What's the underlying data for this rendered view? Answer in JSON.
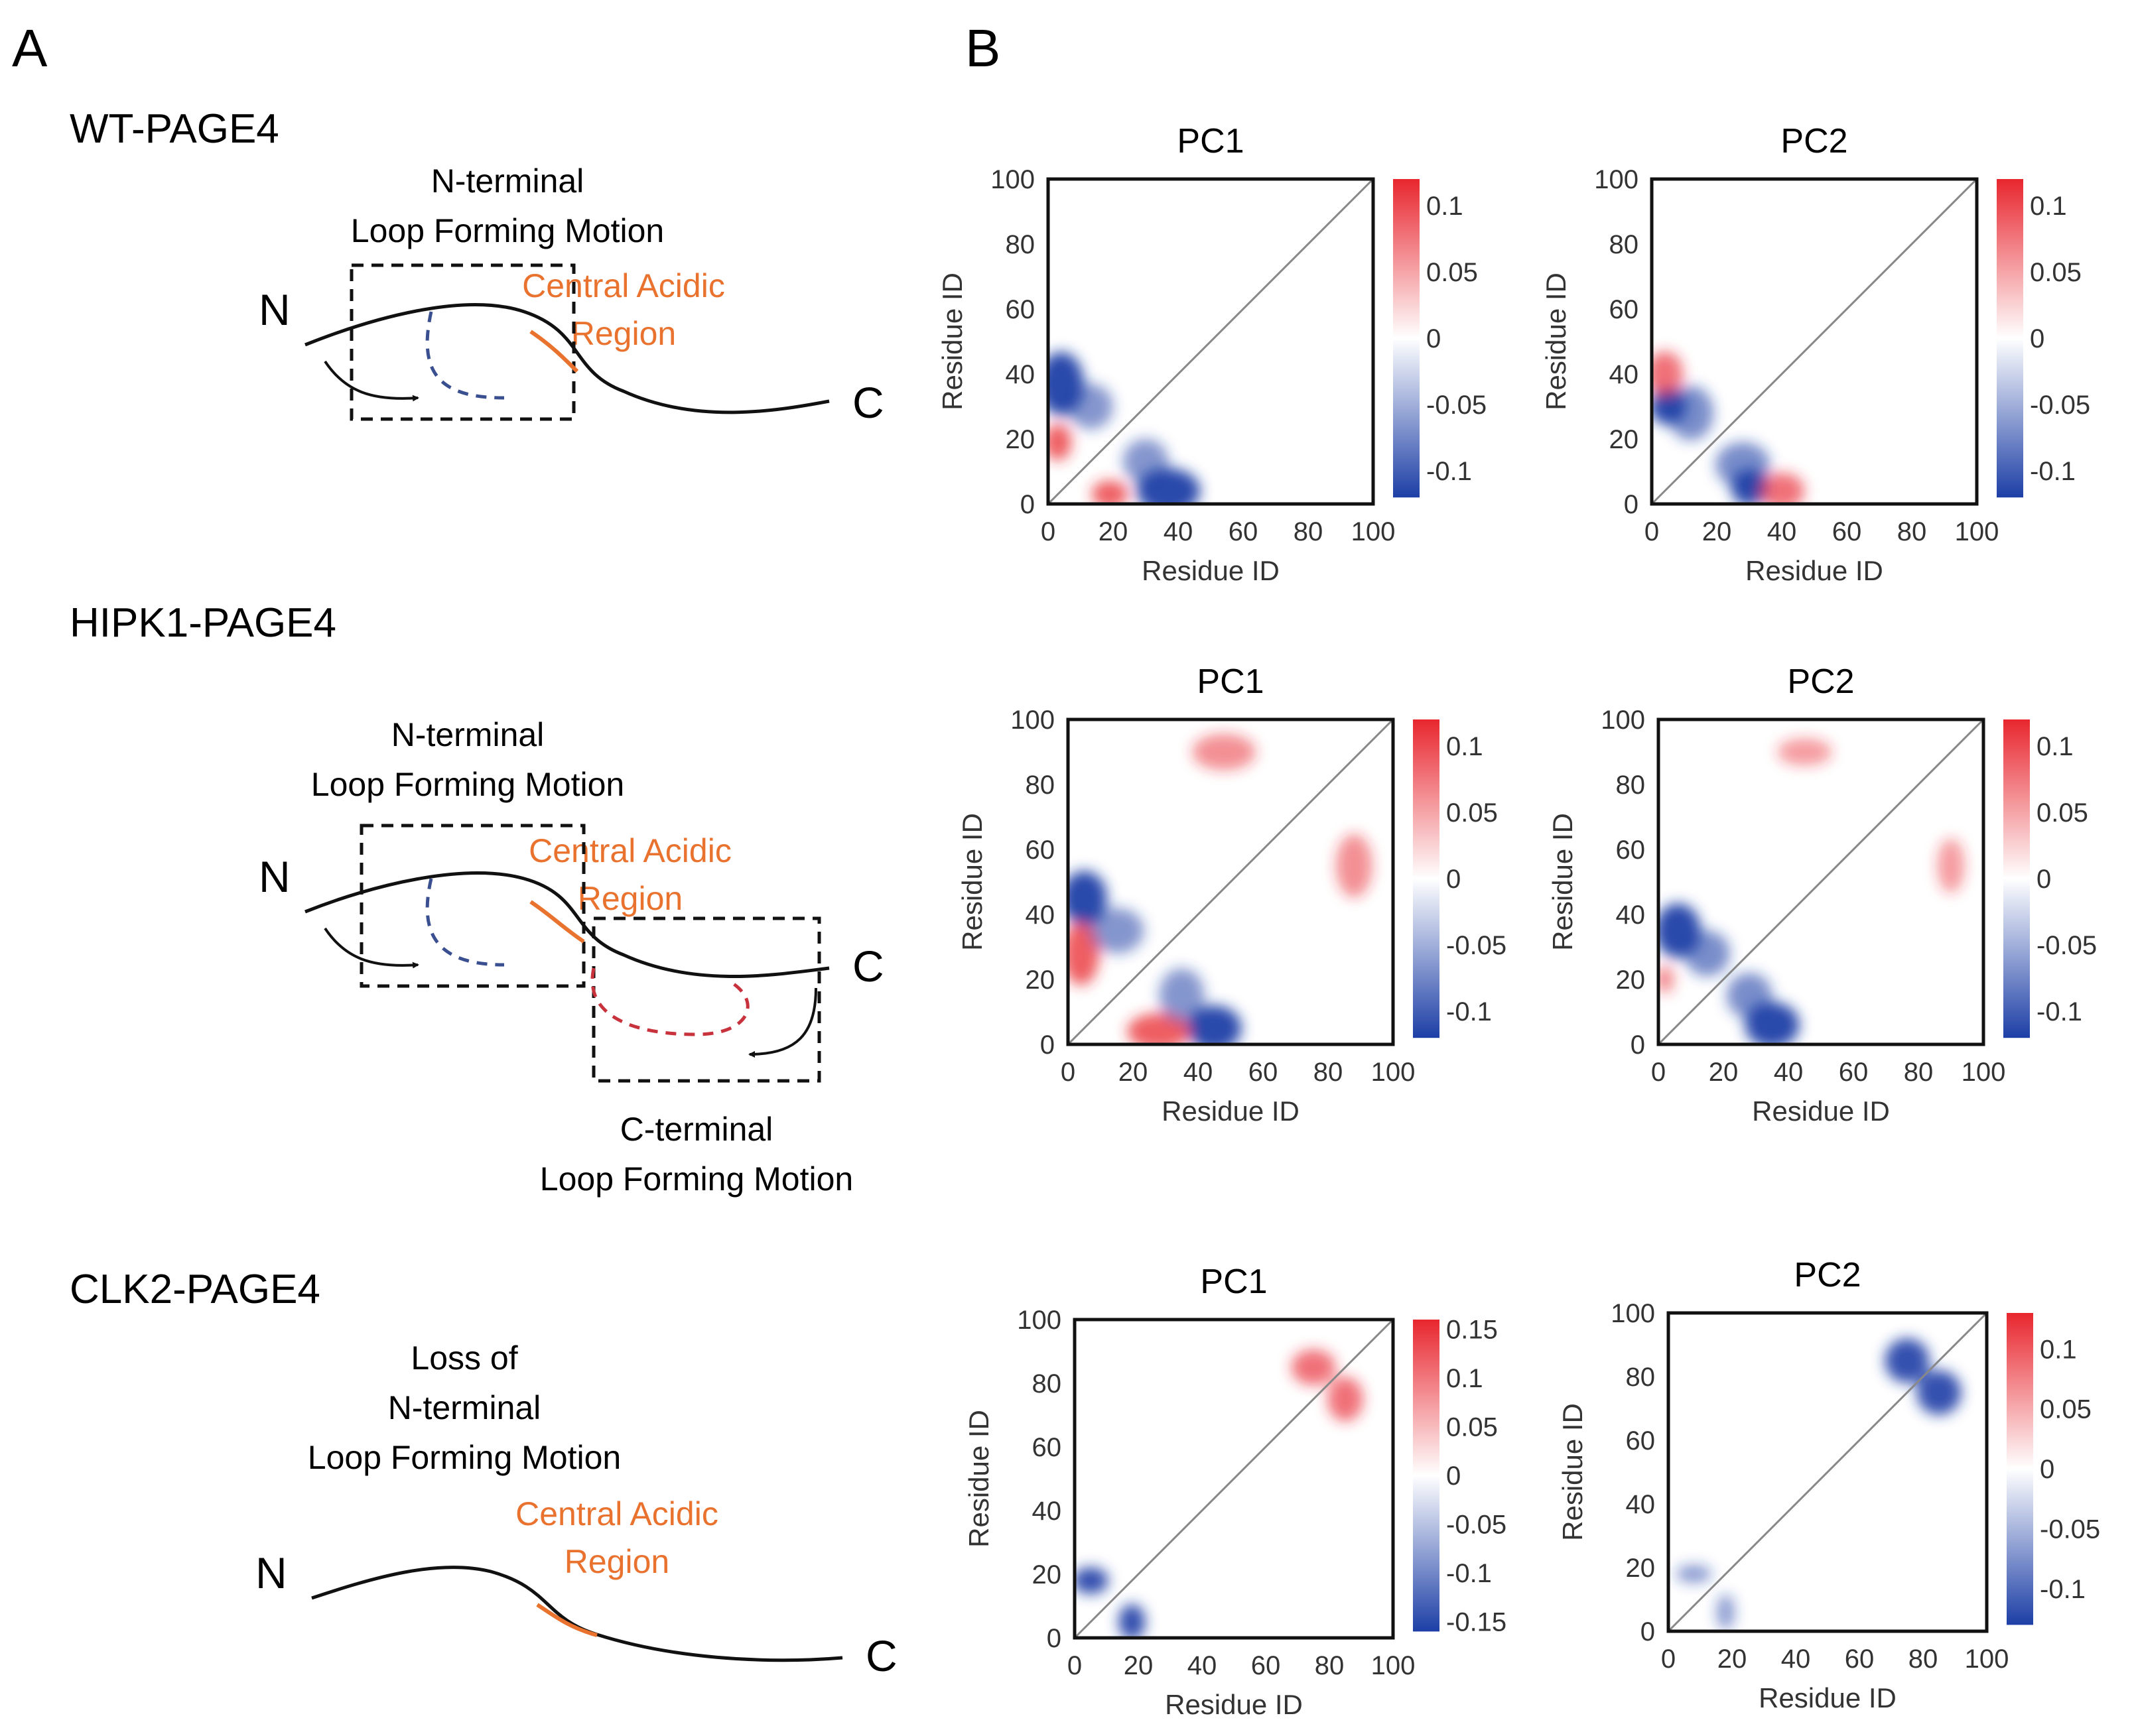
{
  "panel_labels": {
    "a": "A",
    "b": "B"
  },
  "schematics": [
    {
      "title": "WT-PAGE4",
      "motions": [
        {
          "lines": [
            "N-terminal",
            "Loop Forming Motion"
          ]
        }
      ],
      "region": [
        "Central Acidic",
        "Region"
      ],
      "n_label": "N",
      "c_label": "C"
    },
    {
      "title": "HIPK1-PAGE4",
      "motions": [
        {
          "lines": [
            "N-terminal",
            "Loop Forming Motion"
          ]
        },
        {
          "lines": [
            "C-terminal",
            "Loop Forming Motion"
          ]
        }
      ],
      "region": [
        "Central Acidic",
        "Region"
      ],
      "n_label": "N",
      "c_label": "C"
    },
    {
      "title": "CLK2-PAGE4",
      "motions": [
        {
          "lines": [
            "Loss of",
            "N-terminal",
            "Loop Forming Motion"
          ]
        }
      ],
      "region": [
        "Central Acidic",
        "Region"
      ],
      "n_label": "N",
      "c_label": "C"
    }
  ],
  "colors": {
    "region_orange": "#e8722e",
    "n_loop_blue": "#3a4f8f",
    "c_loop_red": "#c8323c",
    "map_red": "#e8262e",
    "map_blue": "#1d3fa6"
  },
  "chart_data": [
    {
      "type": "heatmap",
      "title": "PC1",
      "xlabel": "Residue ID",
      "ylabel": "Residue ID",
      "xlim": [
        0,
        100
      ],
      "ylim": [
        0,
        100
      ],
      "xticks": [
        "0",
        "20",
        "40",
        "60",
        "80",
        "100"
      ],
      "yticks": [
        "0",
        "20",
        "40",
        "60",
        "80",
        "100"
      ],
      "colorbar_ticks": [
        "0.1",
        "0.05",
        "0",
        "-0.05",
        "-0.1"
      ],
      "colorbar_range": [
        -0.12,
        0.12
      ],
      "blobs": [
        {
          "x": 4,
          "y": 37,
          "sx": 5,
          "sy": 7,
          "v": -0.12
        },
        {
          "x": 37,
          "y": 4,
          "sx": 7,
          "sy": 5,
          "v": -0.12
        },
        {
          "x": 3,
          "y": 19,
          "sx": 3,
          "sy": 4,
          "v": 0.08
        },
        {
          "x": 19,
          "y": 3,
          "sx": 4,
          "sy": 3,
          "v": 0.08
        },
        {
          "x": 13,
          "y": 30,
          "sx": 5,
          "sy": 5,
          "v": -0.04
        },
        {
          "x": 30,
          "y": 13,
          "sx": 5,
          "sy": 5,
          "v": -0.04
        }
      ]
    },
    {
      "type": "heatmap",
      "title": "PC2",
      "xlabel": "Residue ID",
      "ylabel": "Residue ID",
      "xlim": [
        0,
        100
      ],
      "ylim": [
        0,
        100
      ],
      "xticks": [
        "0",
        "20",
        "40",
        "60",
        "80",
        "100"
      ],
      "yticks": [
        "0",
        "20",
        "40",
        "60",
        "80",
        "100"
      ],
      "colorbar_ticks": [
        "0.1",
        "0.05",
        "0",
        "-0.05",
        "-0.1"
      ],
      "colorbar_range": [
        -0.12,
        0.12
      ],
      "blobs": [
        {
          "x": 5,
          "y": 30,
          "sx": 4,
          "sy": 4,
          "v": -0.12
        },
        {
          "x": 30,
          "y": 5,
          "sx": 4,
          "sy": 4,
          "v": -0.12
        },
        {
          "x": 4,
          "y": 40,
          "sx": 4,
          "sy": 5,
          "v": 0.06
        },
        {
          "x": 40,
          "y": 4,
          "sx": 5,
          "sy": 4,
          "v": 0.06
        },
        {
          "x": 12,
          "y": 28,
          "sx": 5,
          "sy": 6,
          "v": -0.05
        },
        {
          "x": 28,
          "y": 12,
          "sx": 6,
          "sy": 5,
          "v": -0.05
        }
      ]
    },
    {
      "type": "heatmap",
      "title": "PC1",
      "xlabel": "Residue ID",
      "ylabel": "Residue ID",
      "xlim": [
        0,
        100
      ],
      "ylim": [
        0,
        100
      ],
      "xticks": [
        "0",
        "20",
        "40",
        "60",
        "80",
        "100"
      ],
      "yticks": [
        "0",
        "20",
        "40",
        "60",
        "80",
        "100"
      ],
      "colorbar_ticks": [
        "0.1",
        "0.05",
        "0",
        "-0.05",
        "-0.1"
      ],
      "colorbar_range": [
        -0.12,
        0.12
      ],
      "blobs": [
        {
          "x": 5,
          "y": 45,
          "sx": 5,
          "sy": 6,
          "v": -0.12
        },
        {
          "x": 45,
          "y": 5,
          "sx": 6,
          "sy": 5,
          "v": -0.12
        },
        {
          "x": 4,
          "y": 28,
          "sx": 4,
          "sy": 7,
          "v": 0.08
        },
        {
          "x": 28,
          "y": 4,
          "sx": 7,
          "sy": 4,
          "v": 0.08
        },
        {
          "x": 48,
          "y": 90,
          "sx": 7,
          "sy": 4,
          "v": 0.03
        },
        {
          "x": 88,
          "y": 55,
          "sx": 4,
          "sy": 7,
          "v": 0.03
        },
        {
          "x": 15,
          "y": 35,
          "sx": 6,
          "sy": 5,
          "v": -0.04
        },
        {
          "x": 35,
          "y": 15,
          "sx": 5,
          "sy": 6,
          "v": -0.04
        }
      ]
    },
    {
      "type": "heatmap",
      "title": "PC2",
      "xlabel": "Residue ID",
      "ylabel": "Residue ID",
      "xlim": [
        0,
        100
      ],
      "ylim": [
        0,
        100
      ],
      "xticks": [
        "0",
        "20",
        "40",
        "60",
        "80",
        "100"
      ],
      "yticks": [
        "0",
        "20",
        "40",
        "60",
        "80",
        "100"
      ],
      "colorbar_ticks": [
        "0.1",
        "0.05",
        "0",
        "-0.05",
        "-0.1"
      ],
      "colorbar_range": [
        -0.12,
        0.12
      ],
      "blobs": [
        {
          "x": 6,
          "y": 35,
          "sx": 5,
          "sy": 6,
          "v": -0.12
        },
        {
          "x": 35,
          "y": 6,
          "sx": 6,
          "sy": 5,
          "v": -0.12
        },
        {
          "x": 15,
          "y": 28,
          "sx": 5,
          "sy": 5,
          "v": -0.05
        },
        {
          "x": 28,
          "y": 15,
          "sx": 5,
          "sy": 5,
          "v": -0.05
        },
        {
          "x": 45,
          "y": 90,
          "sx": 6,
          "sy": 3,
          "v": 0.02
        },
        {
          "x": 90,
          "y": 55,
          "sx": 3,
          "sy": 6,
          "v": 0.02
        },
        {
          "x": 2,
          "y": 20,
          "sx": 2,
          "sy": 3,
          "v": 0.04
        }
      ]
    },
    {
      "type": "heatmap",
      "title": "PC1",
      "xlabel": "Residue ID",
      "ylabel": "Residue ID",
      "xlim": [
        0,
        100
      ],
      "ylim": [
        0,
        100
      ],
      "xticks": [
        "0",
        "20",
        "40",
        "60",
        "80",
        "100"
      ],
      "yticks": [
        "0",
        "20",
        "40",
        "60",
        "80",
        "100"
      ],
      "colorbar_ticks": [
        "0.15",
        "0.1",
        "0.05",
        "0",
        "-0.05",
        "-0.1",
        "-0.15"
      ],
      "colorbar_range": [
        -0.16,
        0.16
      ],
      "blobs": [
        {
          "x": 5,
          "y": 18,
          "sx": 4,
          "sy": 3,
          "v": -0.15
        },
        {
          "x": 18,
          "y": 5,
          "sx": 3,
          "sy": 4,
          "v": -0.15
        },
        {
          "x": 75,
          "y": 85,
          "sx": 5,
          "sy": 4,
          "v": 0.08
        },
        {
          "x": 85,
          "y": 75,
          "sx": 4,
          "sy": 5,
          "v": 0.08
        }
      ]
    },
    {
      "type": "heatmap",
      "title": "PC2",
      "xlabel": "Residue ID",
      "ylabel": "Residue ID",
      "xlim": [
        0,
        100
      ],
      "ylim": [
        0,
        100
      ],
      "xticks": [
        "0",
        "20",
        "40",
        "60",
        "80",
        "100"
      ],
      "yticks": [
        "0",
        "20",
        "40",
        "60",
        "80",
        "100"
      ],
      "colorbar_ticks": [
        "0.1",
        "0.05",
        "0",
        "-0.05",
        "-0.1"
      ],
      "colorbar_range": [
        -0.13,
        0.13
      ],
      "blobs": [
        {
          "x": 75,
          "y": 85,
          "sx": 5,
          "sy": 5,
          "v": -0.12
        },
        {
          "x": 85,
          "y": 75,
          "sx": 5,
          "sy": 5,
          "v": -0.12
        },
        {
          "x": 8,
          "y": 18,
          "sx": 4,
          "sy": 2,
          "v": -0.04
        },
        {
          "x": 18,
          "y": 6,
          "sx": 2,
          "sy": 4,
          "v": -0.04
        }
      ]
    }
  ]
}
